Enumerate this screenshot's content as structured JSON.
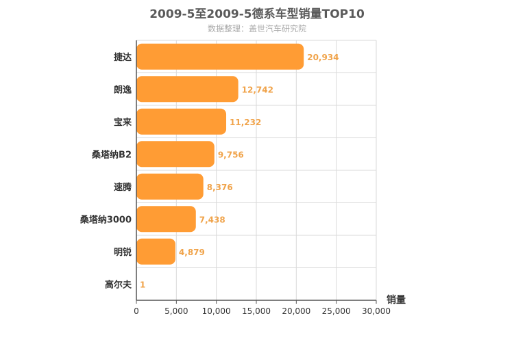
{
  "chart_data": {
    "type": "bar",
    "orientation": "horizontal",
    "title": "2009-5至2009-5德系车型销量TOP10",
    "subtitle": "数据整理：盖世汽车研究院",
    "categories": [
      "捷达",
      "朗逸",
      "宝来",
      "桑塔纳B2",
      "速腾",
      "桑塔纳3000",
      "明锐",
      "高尔夫"
    ],
    "values": [
      20934,
      12742,
      11232,
      9756,
      8376,
      7438,
      4879,
      1
    ],
    "value_labels": [
      "20,934",
      "12,742",
      "11,232",
      "9,756",
      "8,376",
      "7,438",
      "4,879",
      "1"
    ],
    "xlabel": "销量",
    "ylabel": "",
    "xlim": [
      0,
      30000
    ],
    "xticks": [
      0,
      5000,
      10000,
      15000,
      20000,
      25000,
      30000
    ],
    "xtick_labels": [
      "0",
      "5,000",
      "10,000",
      "15,000",
      "20,000",
      "25,000",
      "30,000"
    ],
    "grid": true,
    "bar_color": "#ff9c34",
    "value_label_color": "#f0a34a",
    "grid_color": "#d9d9d9",
    "axis_color": "#555555"
  }
}
